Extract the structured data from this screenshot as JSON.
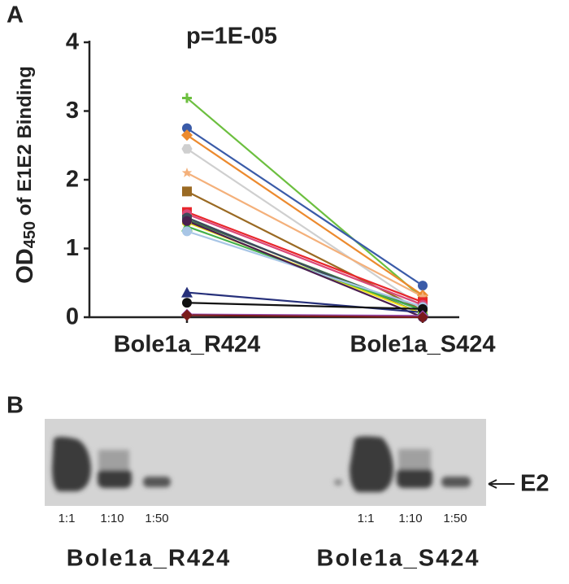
{
  "panels": {
    "a": "A",
    "b": "B"
  },
  "chart_data": {
    "type": "paired-line",
    "annotation": "p=1E-05",
    "y_label": {
      "main": "OD",
      "sub": "450",
      "rest": " of E1E2 Binding"
    },
    "categories": [
      "Bole1a_R424",
      "Bole1a_S424"
    ],
    "ylim": [
      0,
      4
    ],
    "yticks": [
      0,
      1,
      2,
      3,
      4
    ],
    "series": [
      {
        "color": "#6cbf3f",
        "marker": "plus",
        "values": [
          3.19,
          0.28
        ]
      },
      {
        "color": "#3a5ba8",
        "marker": "circle",
        "values": [
          2.75,
          0.46
        ]
      },
      {
        "color": "#ec8a2e",
        "marker": "diamond",
        "values": [
          2.65,
          0.32
        ]
      },
      {
        "color": "#cfcfcf",
        "marker": "hexagon",
        "values": [
          2.45,
          0.15
        ]
      },
      {
        "color": "#f4b07a",
        "marker": "star",
        "values": [
          2.1,
          0.3
        ]
      },
      {
        "color": "#9a6a23",
        "marker": "square",
        "values": [
          1.83,
          0.1
        ]
      },
      {
        "color": "#e8262b",
        "marker": "square",
        "values": [
          1.53,
          0.22
        ]
      },
      {
        "color": "#d9487a",
        "marker": "circle",
        "values": [
          1.5,
          0.18
        ]
      },
      {
        "color": "#3f6d4a",
        "marker": "square",
        "values": [
          1.42,
          0.1
        ]
      },
      {
        "color": "#3d4a5c",
        "marker": "circle",
        "values": [
          1.45,
          0.05
        ]
      },
      {
        "color": "#f2e21a",
        "marker": "circle",
        "values": [
          1.38,
          0.05
        ]
      },
      {
        "color": "#43b04a",
        "marker": "triangle",
        "values": [
          1.32,
          0.1
        ]
      },
      {
        "color": "#a8c6e6",
        "marker": "circle",
        "values": [
          1.25,
          0.15
        ]
      },
      {
        "color": "#4a1f4f",
        "marker": "circle",
        "values": [
          1.4,
          0.0
        ]
      },
      {
        "color": "#26307a",
        "marker": "triangle",
        "values": [
          0.36,
          0.07
        ]
      },
      {
        "color": "#111111",
        "marker": "circle",
        "values": [
          0.21,
          0.12
        ]
      },
      {
        "color": "#9b4fb0",
        "marker": "diamond",
        "values": [
          0.04,
          0.02
        ]
      },
      {
        "color": "#7a1a1a",
        "marker": "diamond",
        "values": [
          0.03,
          0.0
        ]
      }
    ]
  },
  "blot": {
    "dilutions": [
      "1:1",
      "1:10",
      "1:50",
      "1:1",
      "1:10",
      "1:50"
    ],
    "samples": [
      "Bole1a_R424",
      "Bole1a_S424"
    ],
    "band_label": "E2"
  }
}
